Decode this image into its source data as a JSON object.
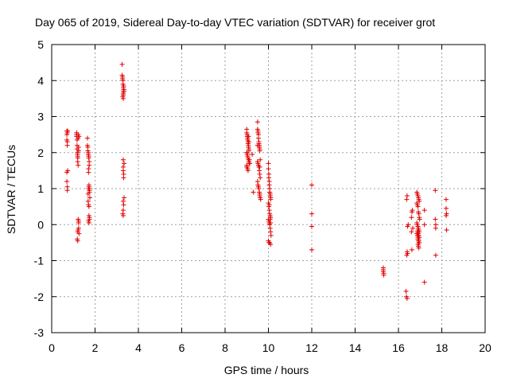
{
  "chart_data": {
    "type": "scatter",
    "title": "Day 065 of 2019, Sidereal Day-to-day VTEC variation (SDTVAR) for receiver grot",
    "xlabel": "GPS time / hours",
    "ylabel": "SDTVAR / TECUs",
    "xlim": [
      0,
      20
    ],
    "ylim": [
      -3,
      5
    ],
    "xticks": [
      "0",
      "2",
      "4",
      "6",
      "8",
      "10",
      "12",
      "14",
      "16",
      "18",
      "20"
    ],
    "yticks": [
      "-3",
      "-2",
      "-1",
      "0",
      "1",
      "2",
      "3",
      "4",
      "5"
    ],
    "grid": true,
    "marker": "+",
    "color": "#e00000",
    "series": [
      {
        "name": "SDTVAR",
        "x": [
          0.7,
          0.7,
          0.7,
          0.72,
          0.72,
          0.72,
          0.74,
          0.74,
          0.7,
          0.7,
          0.72,
          0.72,
          1.15,
          1.15,
          1.15,
          1.17,
          1.17,
          1.17,
          1.19,
          1.19,
          1.2,
          1.2,
          1.22,
          1.22,
          1.24,
          1.24,
          1.2,
          1.22,
          1.22,
          1.24,
          1.24,
          1.2,
          1.18,
          1.2,
          1.22,
          1.26,
          1.24,
          1.26,
          1.65,
          1.65,
          1.67,
          1.67,
          1.69,
          1.69,
          1.71,
          1.71,
          1.73,
          1.73,
          1.7,
          1.7,
          1.72,
          1.72,
          1.7,
          1.74,
          1.74,
          1.68,
          1.68,
          1.7,
          1.72,
          1.72,
          1.74,
          1.74,
          1.7,
          1.72,
          1.74,
          1.76,
          3.25,
          3.25,
          3.27,
          3.27,
          3.29,
          3.29,
          3.31,
          3.31,
          3.33,
          3.33,
          3.3,
          3.3,
          3.28,
          3.3,
          3.32,
          3.32,
          3.3,
          3.34,
          3.3,
          3.3,
          3.32,
          3.32,
          3.34,
          3.3,
          3.32,
          3.3,
          3.28,
          3.3,
          3.32,
          3.3,
          9.0,
          9.0,
          9.02,
          9.02,
          9.04,
          9.04,
          9.06,
          9.06,
          9.08,
          9.08,
          9.1,
          9.1,
          9.0,
          9.02,
          9.04,
          9.06,
          9.08,
          9.1,
          9.12,
          9.0,
          9.02,
          9.04,
          9.06,
          9.08,
          9.1,
          9.12,
          9.14,
          9.0,
          9.02,
          9.3,
          9.25,
          9.5,
          9.5,
          9.52,
          9.52,
          9.54,
          9.54,
          9.56,
          9.56,
          9.58,
          9.58,
          9.6,
          9.6,
          9.62,
          9.5,
          9.52,
          9.54,
          9.56,
          9.58,
          9.6,
          9.62,
          9.5,
          9.52,
          9.54,
          9.56,
          9.58,
          9.6,
          9.62,
          9.64,
          9.5,
          9.52,
          9.56,
          9.6,
          9.6,
          10.0,
          10.0,
          10.02,
          10.02,
          10.04,
          10.04,
          10.06,
          10.06,
          10.08,
          10.08,
          10.1,
          10.1,
          10.0,
          10.02,
          10.04,
          10.06,
          10.08,
          10.1,
          10.0,
          10.02,
          10.04,
          10.06,
          10.08,
          10.1,
          10.12,
          10.0,
          10.02,
          10.06,
          10.1,
          10.04,
          10.06,
          10.08,
          10.1,
          12.0,
          12.0,
          12.0,
          12.0,
          15.3,
          15.3,
          15.3,
          15.32,
          15.32,
          16.35,
          16.37,
          16.4,
          16.42,
          16.38,
          16.4,
          16.45,
          16.42,
          16.38,
          16.4,
          16.6,
          16.62,
          16.64,
          16.66,
          16.6,
          16.62,
          16.85,
          16.87,
          16.9,
          16.92,
          16.94,
          16.96,
          16.85,
          16.87,
          16.9,
          16.92,
          16.94,
          16.96,
          16.98,
          16.85,
          16.87,
          16.9,
          16.92,
          16.94,
          16.96,
          16.85,
          16.88,
          16.9,
          16.92,
          16.94,
          16.96,
          16.9,
          16.92,
          16.94,
          16.88,
          16.9,
          16.92,
          16.94,
          16.96,
          16.9,
          16.92,
          16.94,
          17.2,
          17.2,
          17.2,
          17.7,
          17.7,
          17.72,
          17.72,
          17.72,
          18.2,
          18.2,
          18.2,
          18.22,
          18.22
        ],
        "y": [
          2.6,
          2.5,
          2.35,
          2.3,
          2.2,
          2.55,
          2.6,
          1.5,
          1.45,
          1.2,
          1.05,
          0.95,
          2.55,
          2.45,
          2.5,
          2.35,
          2.2,
          2.1,
          2.0,
          1.95,
          1.9,
          1.85,
          2.5,
          2.4,
          2.15,
          2.05,
          1.75,
          1.65,
          0.15,
          0.05,
          -0.1,
          -0.2,
          -0.4,
          -0.45,
          -0.15,
          -0.25,
          0.1,
          2.45,
          2.4,
          2.2,
          2.15,
          2.05,
          2.0,
          1.95,
          1.9,
          1.85,
          1.75,
          1.65,
          1.55,
          1.45,
          1.1,
          1.05,
          1.0,
          0.95,
          0.9,
          0.85,
          0.65,
          0.55,
          0.5,
          0.25,
          0.2,
          0.15,
          0.1,
          0.05,
          1.0,
          0.75,
          4.45,
          4.15,
          4.1,
          4.05,
          4.0,
          3.9,
          3.85,
          3.8,
          3.75,
          3.7,
          3.65,
          3.6,
          3.55,
          3.5,
          3.85,
          3.75,
          1.8,
          1.7,
          1.6,
          1.5,
          1.4,
          1.3,
          0.75,
          0.65,
          0.55,
          0.4,
          0.3,
          0.25,
          3.7,
          3.6,
          2.65,
          2.55,
          2.5,
          2.45,
          2.4,
          2.35,
          2.3,
          2.25,
          2.2,
          2.15,
          2.1,
          2.05,
          2.0,
          1.95,
          1.9,
          1.85,
          1.8,
          1.75,
          1.7,
          1.65,
          1.6,
          1.55,
          1.5,
          2.45,
          2.3,
          1.8,
          1.7,
          1.6,
          2.0,
          0.9,
          1.95,
          2.85,
          2.65,
          2.6,
          2.55,
          2.5,
          2.4,
          2.3,
          2.25,
          2.2,
          2.15,
          2.1,
          2.05,
          1.8,
          1.75,
          1.7,
          1.65,
          1.6,
          1.5,
          1.4,
          1.3,
          1.2,
          1.1,
          1.05,
          1.0,
          0.9,
          0.8,
          0.75,
          0.7,
          2.2,
          1.1,
          1.0,
          0.85,
          1.6,
          1.7,
          1.55,
          1.4,
          1.3,
          1.2,
          1.1,
          1.0,
          0.9,
          0.85,
          0.8,
          0.75,
          0.7,
          0.6,
          0.5,
          0.4,
          0.3,
          0.25,
          0.2,
          0.15,
          0.1,
          0.05,
          0.0,
          -0.1,
          -0.2,
          -0.3,
          -0.45,
          -0.5,
          -0.5,
          -0.55,
          0.55,
          0.9,
          0.15,
          0.05,
          1.1,
          0.3,
          -0.05,
          -0.7,
          -1.2,
          -1.25,
          -1.3,
          -1.35,
          -1.4,
          -1.85,
          -2.0,
          -2.05,
          -0.8,
          -0.85,
          -0.75,
          0.0,
          -0.05,
          0.7,
          0.8,
          0.2,
          0.35,
          0.4,
          -0.1,
          -0.2,
          -0.7,
          0.9,
          0.85,
          0.8,
          0.75,
          0.7,
          0.65,
          0.6,
          0.55,
          0.5,
          0.35,
          0.3,
          0.2,
          0.15,
          0.05,
          0.0,
          -0.05,
          -0.1,
          -0.15,
          -0.2,
          -0.25,
          -0.3,
          -0.35,
          -0.4,
          -0.45,
          -0.5,
          -0.55,
          -0.6,
          -0.65,
          -0.2,
          -0.15,
          -0.25,
          -0.3,
          -0.35,
          -0.4,
          -0.45,
          -0.5,
          0.4,
          0.0,
          -1.6,
          0.95,
          0.15,
          -0.1,
          -0.85,
          0.0,
          0.7,
          0.45,
          0.25,
          0.3,
          -0.15
        ]
      }
    ]
  }
}
